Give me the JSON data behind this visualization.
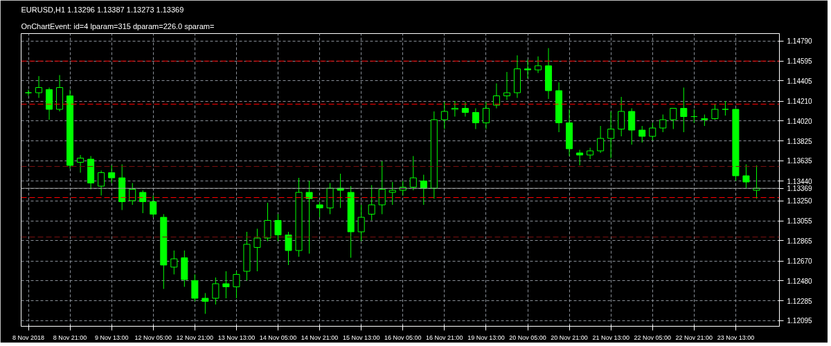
{
  "chart_data": {
    "type": "candlestick",
    "title": "EURUSD,H1  1.13296 1.13387 1.13273 1.13369",
    "subtitle": "OnChartEvent: id=4 lparam=315 dparam=226.0 sparam=",
    "color": "#00ff00",
    "categories": [
      "8 Nov 2018",
      null,
      null,
      null,
      "8 Nov 21:00",
      null,
      null,
      null,
      "9 Nov 13:00",
      null,
      null,
      null,
      "12 Nov 05:00",
      null,
      null,
      null,
      "12 Nov 21:00",
      null,
      null,
      null,
      "13 Nov 13:00",
      null,
      null,
      null,
      "14 Nov 05:00",
      null,
      null,
      null,
      "14 Nov 21:00",
      null,
      null,
      null,
      "15 Nov 13:00",
      null,
      null,
      null,
      "16 Nov 05:00",
      null,
      null,
      null,
      "16 Nov 21:00",
      null,
      null,
      null,
      "19 Nov 13:00",
      null,
      null,
      null,
      "20 Nov 05:00",
      null,
      null,
      null,
      "20 Nov 21:00",
      null,
      null,
      null,
      "21 Nov 13:00",
      null,
      null,
      null,
      "22 Nov 05:00",
      null,
      null,
      null,
      "22 Nov 21:00",
      null,
      null,
      null,
      "23 Nov 13:00",
      null,
      null
    ],
    "ohlc": [
      [
        1.1429,
        1.1432,
        1.1426,
        1.1429
      ],
      [
        1.1429,
        1.1445,
        1.1424,
        1.1434
      ],
      [
        1.1432,
        1.1434,
        1.1403,
        1.1413
      ],
      [
        1.1413,
        1.1446,
        1.1411,
        1.1434
      ],
      [
        1.1426,
        1.1432,
        1.1356,
        1.1359
      ],
      [
        1.1362,
        1.1369,
        1.1352,
        1.1366
      ],
      [
        1.1365,
        1.1368,
        1.1336,
        1.1342
      ],
      [
        1.1339,
        1.1354,
        1.133,
        1.1352
      ],
      [
        1.1352,
        1.1359,
        1.1342,
        1.1347
      ],
      [
        1.1347,
        1.136,
        1.1316,
        1.1324
      ],
      [
        1.1325,
        1.1342,
        1.1321,
        1.1336
      ],
      [
        1.1333,
        1.1335,
        1.1313,
        1.1324
      ],
      [
        1.1324,
        1.133,
        1.1309,
        1.1312
      ],
      [
        1.1309,
        1.1312,
        1.124,
        1.1263
      ],
      [
        1.1261,
        1.1277,
        1.1254,
        1.1269
      ],
      [
        1.127,
        1.1277,
        1.1242,
        1.1249
      ],
      [
        1.1248,
        1.1254,
        1.1228,
        1.1231
      ],
      [
        1.1231,
        1.1236,
        1.1216,
        1.1228
      ],
      [
        1.1231,
        1.1251,
        1.1225,
        1.1245
      ],
      [
        1.1245,
        1.1257,
        1.1231,
        1.1242
      ],
      [
        1.1242,
        1.1257,
        1.1231,
        1.1254
      ],
      [
        1.1257,
        1.1295,
        1.1248,
        1.1283
      ],
      [
        1.128,
        1.1298,
        1.1257,
        1.1289
      ],
      [
        1.1289,
        1.1323,
        1.1286,
        1.1306
      ],
      [
        1.1306,
        1.1312,
        1.1286,
        1.1292
      ],
      [
        1.1292,
        1.1295,
        1.1263,
        1.1277
      ],
      [
        1.1277,
        1.1347,
        1.1271,
        1.1333
      ],
      [
        1.1333,
        1.1344,
        1.1274,
        1.1327
      ],
      [
        1.1321,
        1.1324,
        1.1309,
        1.1318
      ],
      [
        1.1318,
        1.1342,
        1.1312,
        1.1337
      ],
      [
        1.1337,
        1.1351,
        1.1318,
        1.1335
      ],
      [
        1.1333,
        1.1339,
        1.127,
        1.1295
      ],
      [
        1.1295,
        1.1321,
        1.1286,
        1.1309
      ],
      [
        1.1312,
        1.134,
        1.1306,
        1.1321
      ],
      [
        1.1321,
        1.1363,
        1.1312,
        1.1336
      ],
      [
        1.1333,
        1.1343,
        1.1321,
        1.1335
      ],
      [
        1.1335,
        1.1344,
        1.133,
        1.1338
      ],
      [
        1.1338,
        1.1368,
        1.1335,
        1.1347
      ],
      [
        1.1344,
        1.135,
        1.1321,
        1.1337
      ],
      [
        1.1337,
        1.1411,
        1.1327,
        1.1403
      ],
      [
        1.1403,
        1.142,
        1.1394,
        1.1411
      ],
      [
        1.1413,
        1.1421,
        1.1406,
        1.1414
      ],
      [
        1.1414,
        1.142,
        1.1406,
        1.141
      ],
      [
        1.141,
        1.1414,
        1.1394,
        1.14
      ],
      [
        1.14,
        1.142,
        1.1394,
        1.1414
      ],
      [
        1.1417,
        1.1438,
        1.1414,
        1.1426
      ],
      [
        1.1426,
        1.1449,
        1.1422,
        1.1429
      ],
      [
        1.1429,
        1.1465,
        1.1424,
        1.1452
      ],
      [
        1.1452,
        1.1461,
        1.1443,
        1.1451
      ],
      [
        1.1451,
        1.1464,
        1.1448,
        1.1455
      ],
      [
        1.1455,
        1.1472,
        1.1423,
        1.1431
      ],
      [
        1.1431,
        1.1439,
        1.1391,
        1.14
      ],
      [
        1.14,
        1.1413,
        1.1368,
        1.1375
      ],
      [
        1.1371,
        1.1374,
        1.1359,
        1.1369
      ],
      [
        1.1369,
        1.1376,
        1.1365,
        1.1373
      ],
      [
        1.1373,
        1.1397,
        1.1371,
        1.1385
      ],
      [
        1.1385,
        1.1411,
        1.1366,
        1.1394
      ],
      [
        1.1394,
        1.1425,
        1.1387,
        1.1411
      ],
      [
        1.1411,
        1.1414,
        1.1379,
        1.1393
      ],
      [
        1.1393,
        1.1397,
        1.1381,
        1.1387
      ],
      [
        1.1387,
        1.14,
        1.1383,
        1.1395
      ],
      [
        1.1395,
        1.1408,
        1.1391,
        1.1403
      ],
      [
        1.1403,
        1.1414,
        1.1394,
        1.1414
      ],
      [
        1.1414,
        1.1434,
        1.1391,
        1.1406
      ],
      [
        1.1406,
        1.1413,
        1.14,
        1.1406
      ],
      [
        1.1404,
        1.1408,
        1.1397,
        1.1403
      ],
      [
        1.1404,
        1.1418,
        1.1403,
        1.1413
      ],
      [
        1.1413,
        1.1421,
        1.1407,
        1.1413
      ],
      [
        1.1413,
        1.1414,
        1.1344,
        1.1349
      ],
      [
        1.1349,
        1.136,
        1.1337,
        1.1343
      ],
      [
        1.1335,
        1.1359,
        1.1327,
        1.1337
      ]
    ],
    "ylim": [
      1.1204,
      1.1486
    ],
    "yticks": [
      1.12095,
      1.12285,
      {
        "value": 1.1248,
        "label": "1.12480"
      },
      {
        "value": 1.1267,
        "label": "1.12670"
      },
      1.12865,
      1.13055,
      {
        "value": 1.1325,
        "label": "1.13250"
      },
      1.13369,
      {
        "value": 1.1344,
        "label": "1.13440"
      },
      1.13635,
      1.13825,
      {
        "value": 1.1402,
        "label": "1.14020"
      },
      {
        "value": 1.1421,
        "label": "1.14210"
      },
      1.14405,
      1.14595,
      {
        "value": 1.1479,
        "label": "1.14790"
      }
    ],
    "grid": true,
    "ref_lines": [
      {
        "axis": "y",
        "value": 1.14595,
        "color": "#ff0000",
        "line_style": "dashed"
      },
      {
        "axis": "y",
        "value": 1.1418,
        "color": "#ff0000",
        "line_style": "dashed"
      },
      {
        "axis": "y",
        "value": 1.1358,
        "color": "#7a1010",
        "line_style": "dashed"
      },
      {
        "axis": "y",
        "value": 1.1328,
        "color": "#ff0000",
        "line_style": "dashed"
      },
      {
        "axis": "y",
        "value": 1.129,
        "color": "#7a1010",
        "line_style": "dashed"
      },
      {
        "axis": "y",
        "value": 1.13369,
        "color": "#a0a0a0",
        "line_style": "solid"
      }
    ]
  }
}
